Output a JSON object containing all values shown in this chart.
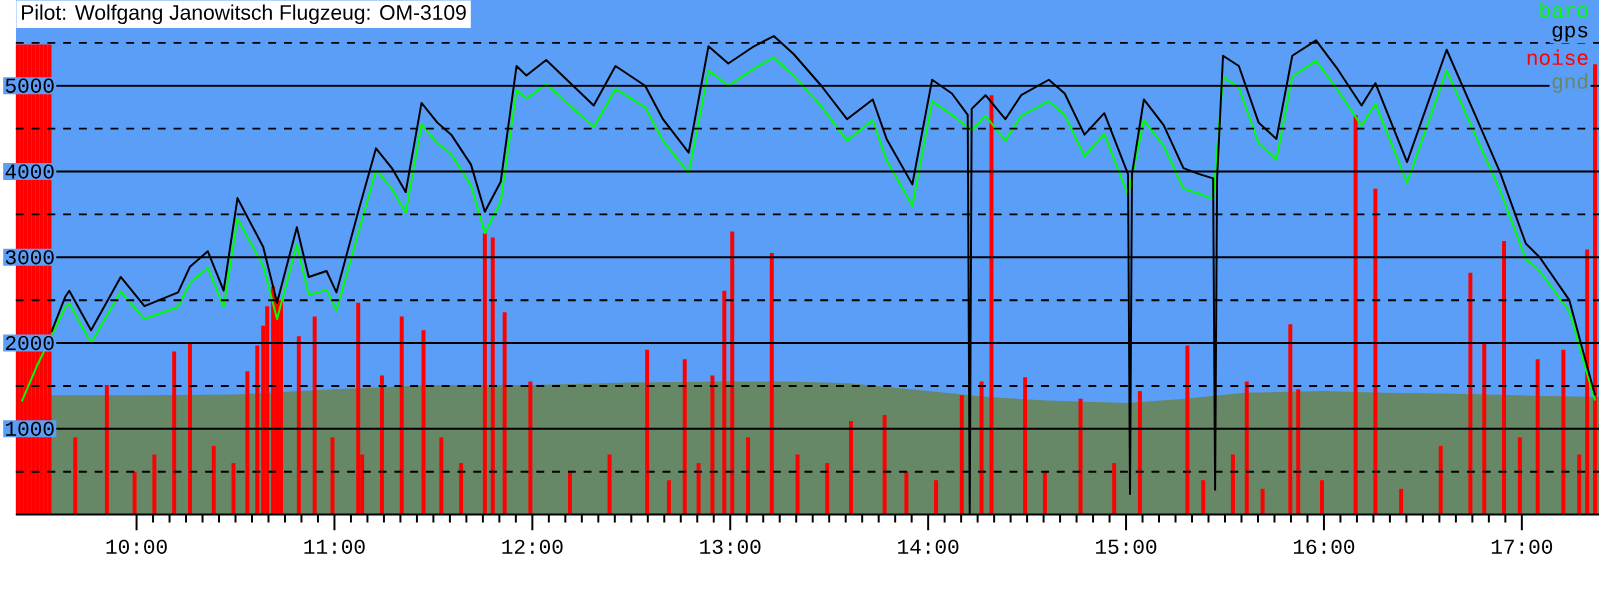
{
  "chart_data": {
    "type": "line",
    "title": "Pilot: Wolfgang Janowitsch Flugzeug: OM-3109",
    "xlim": [
      9.39,
      17.39
    ],
    "ylim": [
      0,
      6000
    ],
    "xticks": [
      {
        "value": 10,
        "label": "10:00"
      },
      {
        "value": 11,
        "label": "11:00"
      },
      {
        "value": 12,
        "label": "12:00"
      },
      {
        "value": 13,
        "label": "13:00"
      },
      {
        "value": 14,
        "label": "14:00"
      },
      {
        "value": 15,
        "label": "15:00"
      },
      {
        "value": 16,
        "label": "16:00"
      },
      {
        "value": 17,
        "label": "17:00"
      }
    ],
    "yticks": [
      {
        "value": 500,
        "label": null
      },
      1000,
      {
        "value": 1500,
        "label": null
      },
      2000,
      {
        "value": 2500,
        "label": null
      },
      3000,
      {
        "value": 3500,
        "label": null
      },
      4000,
      {
        "value": 4500,
        "label": null
      },
      5000,
      {
        "value": 5500,
        "label": null
      }
    ],
    "grid": "y",
    "legend": "top right",
    "series": [
      {
        "name": "baro",
        "color": "#00ff00",
        "x": [
          9.42,
          9.5,
          9.57,
          9.64,
          9.66,
          9.77,
          9.92,
          10.04,
          10.21,
          10.27,
          10.36,
          10.44,
          10.51,
          10.64,
          10.71,
          10.81,
          10.87,
          10.96,
          11.01,
          11.12,
          11.21,
          11.29,
          11.36,
          11.44,
          11.52,
          11.59,
          11.69,
          11.76,
          11.84,
          11.92,
          11.97,
          12.07,
          12.31,
          12.42,
          12.57,
          12.66,
          12.79,
          12.89,
          12.99,
          13.12,
          13.22,
          13.32,
          13.46,
          13.59,
          13.72,
          13.79,
          13.92,
          14.02,
          14.12,
          14.22,
          14.29,
          14.39,
          14.47,
          14.61,
          14.69,
          14.79,
          14.89,
          15.01,
          15.09,
          15.19,
          15.29,
          15.37,
          15.44,
          15.49,
          15.57,
          15.67,
          15.76,
          15.84,
          15.96,
          16.07,
          16.19,
          16.26,
          16.42,
          16.62,
          16.76,
          16.89,
          17.02,
          17.09,
          17.24,
          17.32,
          17.37
        ],
        "values": [
          1320,
          1750,
          2080,
          2420,
          2460,
          2000,
          2600,
          2280,
          2420,
          2700,
          2880,
          2420,
          3450,
          2900,
          2280,
          3150,
          2560,
          2620,
          2380,
          3280,
          4020,
          3800,
          3520,
          4550,
          4330,
          4200,
          3840,
          3280,
          3650,
          4950,
          4850,
          5020,
          4520,
          4960,
          4750,
          4360,
          3980,
          5180,
          5000,
          5200,
          5330,
          5120,
          4760,
          4360,
          4600,
          4130,
          3600,
          4820,
          4660,
          4480,
          4650,
          4360,
          4650,
          4820,
          4660,
          4180,
          4440,
          3720,
          4600,
          4300,
          3800,
          3740,
          3680,
          5100,
          4980,
          4330,
          4140,
          5110,
          5290,
          4950,
          4530,
          4790,
          3870,
          5180,
          4450,
          3780,
          2980,
          2840,
          2370,
          1720,
          1330
        ]
      },
      {
        "name": "gps",
        "color": "#000000",
        "x": [
          9.57,
          9.64,
          9.66,
          9.77,
          9.92,
          10.04,
          10.21,
          10.27,
          10.36,
          10.44,
          10.51,
          10.64,
          10.71,
          10.81,
          10.87,
          10.96,
          11.01,
          11.12,
          11.21,
          11.29,
          11.36,
          11.44,
          11.52,
          11.59,
          11.69,
          11.76,
          11.84,
          11.92,
          11.97,
          12.07,
          12.31,
          12.42,
          12.57,
          12.66,
          12.79,
          12.89,
          12.99,
          13.12,
          13.22,
          13.32,
          13.46,
          13.59,
          13.72,
          13.79,
          13.92,
          14.02,
          14.12,
          14.2,
          14.21,
          14.22,
          14.29,
          14.39,
          14.47,
          14.61,
          14.69,
          14.79,
          14.89,
          15.01,
          15.02,
          15.03,
          15.09,
          15.19,
          15.29,
          15.37,
          15.44,
          15.45,
          15.46,
          15.49,
          15.57,
          15.67,
          15.76,
          15.84,
          15.96,
          16.07,
          16.19,
          16.26,
          16.42,
          16.62,
          16.76,
          16.89,
          17.02,
          17.09,
          17.24,
          17.32,
          17.37
        ],
        "values": [
          2130,
          2540,
          2610,
          2150,
          2770,
          2430,
          2590,
          2890,
          3070,
          2610,
          3690,
          3120,
          2470,
          3350,
          2770,
          2840,
          2590,
          3530,
          4270,
          4040,
          3760,
          4800,
          4570,
          4430,
          4080,
          3530,
          3880,
          5230,
          5120,
          5300,
          4770,
          5230,
          5000,
          4610,
          4220,
          5460,
          5260,
          5460,
          5580,
          5370,
          5000,
          4610,
          4840,
          4380,
          3850,
          5070,
          4910,
          4660,
          0,
          4730,
          4890,
          4610,
          4890,
          5070,
          4910,
          4430,
          4680,
          3970,
          240,
          3970,
          4840,
          4540,
          4040,
          3970,
          3920,
          290,
          3920,
          5350,
          5230,
          4570,
          4380,
          5350,
          5530,
          5190,
          4770,
          5030,
          4110,
          5420,
          4680,
          3990,
          3160,
          3000,
          2500,
          1810,
          1390
        ]
      },
      {
        "name": "noise",
        "color": "#ff0000",
        "type": "bar",
        "x": [
          9.4,
          9.42,
          9.44,
          9.46,
          9.48,
          9.5,
          9.52,
          9.54,
          9.56,
          9.69,
          9.85,
          9.99,
          10.09,
          10.19,
          10.27,
          10.39,
          10.49,
          10.56,
          10.61,
          10.64,
          10.66,
          10.69,
          10.71,
          10.73,
          10.82,
          10.9,
          10.99,
          11.12,
          11.14,
          11.24,
          11.34,
          11.45,
          11.54,
          11.64,
          11.76,
          11.8,
          11.86,
          11.99,
          12.19,
          12.39,
          12.58,
          12.69,
          12.77,
          12.84,
          12.91,
          12.97,
          13.01,
          13.09,
          13.21,
          13.34,
          13.49,
          13.61,
          13.78,
          13.89,
          14.04,
          14.17,
          14.27,
          14.32,
          14.49,
          14.59,
          14.77,
          14.94,
          15.07,
          15.31,
          15.39,
          15.54,
          15.61,
          15.69,
          15.83,
          15.87,
          15.99,
          16.16,
          16.26,
          16.39,
          16.59,
          16.74,
          16.81,
          16.91,
          16.99,
          17.08,
          17.21,
          17.29,
          17.33,
          17.37
        ],
        "values": [
          5480,
          5480,
          5480,
          5480,
          5480,
          5480,
          5480,
          5480,
          5480,
          900,
          1510,
          500,
          700,
          1900,
          2010,
          800,
          600,
          1670,
          1970,
          2200,
          2430,
          2660,
          2540,
          2500,
          2080,
          2310,
          900,
          2470,
          700,
          1620,
          2310,
          2150,
          900,
          600,
          3280,
          3230,
          2360,
          1550,
          500,
          700,
          1920,
          400,
          1810,
          600,
          1620,
          2610,
          3300,
          900,
          3050,
          700,
          600,
          1090,
          1160,
          500,
          400,
          1390,
          1550,
          4890,
          1600,
          500,
          1350,
          600,
          1440,
          1970,
          400,
          700,
          1550,
          300,
          2220,
          1460,
          400,
          4660,
          3800,
          300,
          800,
          2820,
          2010,
          3190,
          900,
          1810,
          1920,
          700,
          3090,
          5250
        ]
      },
      {
        "name": "gnd",
        "color": "#668866",
        "type": "area",
        "x": [
          9.39,
          10.0,
          10.5,
          11.0,
          11.5,
          12.0,
          12.5,
          13.0,
          13.3,
          13.6,
          14.0,
          14.3,
          14.6,
          15.0,
          15.3,
          15.6,
          16.0,
          16.3,
          16.6,
          17.0,
          17.39
        ],
        "values": [
          1390,
          1390,
          1400,
          1460,
          1510,
          1510,
          1540,
          1550,
          1550,
          1530,
          1440,
          1370,
          1330,
          1300,
          1350,
          1420,
          1440,
          1420,
          1410,
          1390,
          1370
        ]
      }
    ]
  }
}
